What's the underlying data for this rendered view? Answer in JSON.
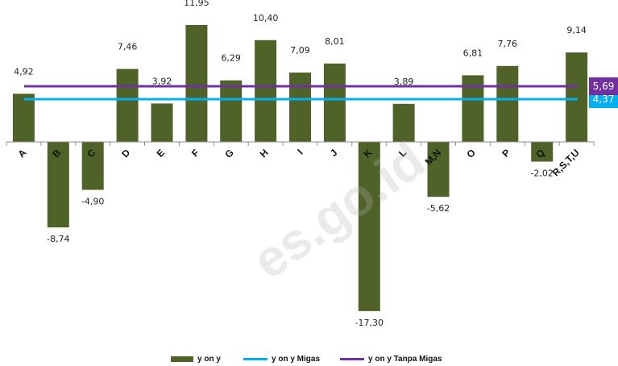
{
  "chart_data": {
    "type": "bar",
    "categories": [
      "A",
      "B",
      "C",
      "D",
      "E",
      "F",
      "G",
      "H",
      "I",
      "J",
      "K",
      "L",
      "M,N",
      "O",
      "P",
      "Q",
      "R,S,T,U"
    ],
    "series": [
      {
        "name": "y on y",
        "values": [
          4.92,
          -8.74,
          -4.9,
          7.46,
          3.92,
          11.95,
          6.29,
          10.4,
          7.09,
          8.01,
          -17.3,
          3.89,
          -5.62,
          6.81,
          7.76,
          -2.02,
          9.14
        ],
        "color": "#4f6228"
      }
    ],
    "value_labels": [
      "4,92",
      "-8,74",
      "-4,90",
      "7,46",
      "3,92",
      "11,95",
      "6,29",
      "10,40",
      "7,09",
      "8,01",
      "-17,30",
      "3,89",
      "-5,62",
      "6,81",
      "7,76",
      "-2,02",
      "9,14"
    ],
    "reference_lines": [
      {
        "name": "y on y Migas",
        "value": 4.37,
        "label": "4,37",
        "color": "#00b0f0"
      },
      {
        "name": "y on y Tanpa Migas",
        "value": 5.69,
        "label": "5,69",
        "color": "#7030a0"
      }
    ],
    "ylim": [
      -17.3,
      11.95
    ],
    "grid": false,
    "legend_position": "bottom"
  },
  "legend": {
    "items": [
      {
        "label": "y on y",
        "kind": "bar",
        "color": "#4f6228"
      },
      {
        "label": "y on y Migas",
        "kind": "line",
        "color": "#00b0f0"
      },
      {
        "label": "y on y Tanpa Migas",
        "kind": "line",
        "color": "#7030a0"
      }
    ]
  },
  "watermark": {
    "text": "es.go.id"
  }
}
